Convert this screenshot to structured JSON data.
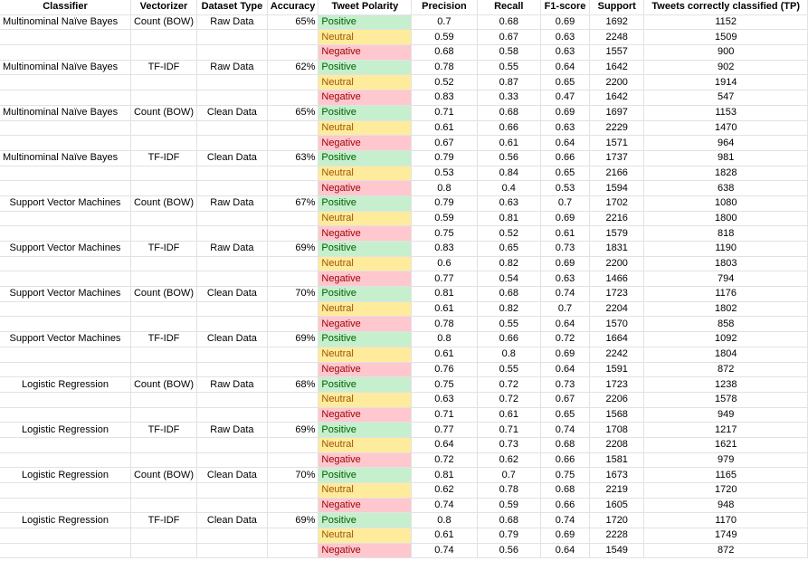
{
  "headers": [
    "Classifier",
    "Vectorizer",
    "Dataset Type",
    "Accuracy",
    "Tweet Polarity",
    "Precision",
    "Recall",
    "F1-score",
    "Support",
    "Tweets correctly classified (TP)"
  ],
  "colors": {
    "positive_bg": "#c6efce",
    "positive_text": "#006100",
    "neutral_bg": "#ffeb9c",
    "neutral_text": "#9c5700",
    "negative_bg": "#ffc7ce",
    "negative_text": "#9c0006"
  },
  "groups": [
    {
      "classifier": "Multinominal Naïve Bayes",
      "vectorizer": "Count (BOW)",
      "dataset": "Raw Data",
      "accuracy": "65%",
      "rows": [
        {
          "polarity": "Positive",
          "precision": "0.7",
          "recall": "0.68",
          "f1": "0.69",
          "support": "1692",
          "tp": "1152"
        },
        {
          "polarity": "Neutral",
          "precision": "0.59",
          "recall": "0.67",
          "f1": "0.63",
          "support": "2248",
          "tp": "1509"
        },
        {
          "polarity": "Negative",
          "precision": "0.68",
          "recall": "0.58",
          "f1": "0.63",
          "support": "1557",
          "tp": "900"
        }
      ]
    },
    {
      "classifier": "Multinominal Naïve Bayes",
      "vectorizer": "TF-IDF",
      "dataset": "Raw Data",
      "accuracy": "62%",
      "rows": [
        {
          "polarity": "Positive",
          "precision": "0.78",
          "recall": "0.55",
          "f1": "0.64",
          "support": "1642",
          "tp": "902"
        },
        {
          "polarity": "Neutral",
          "precision": "0.52",
          "recall": "0.87",
          "f1": "0.65",
          "support": "2200",
          "tp": "1914"
        },
        {
          "polarity": "Negative",
          "precision": "0.83",
          "recall": "0.33",
          "f1": "0.47",
          "support": "1642",
          "tp": "547"
        }
      ]
    },
    {
      "classifier": "Multinominal Naïve Bayes",
      "vectorizer": "Count (BOW)",
      "dataset": "Clean Data",
      "accuracy": "65%",
      "rows": [
        {
          "polarity": "Positive",
          "precision": "0.71",
          "recall": "0.68",
          "f1": "0.69",
          "support": "1697",
          "tp": "1153"
        },
        {
          "polarity": "Neutral",
          "precision": "0.61",
          "recall": "0.66",
          "f1": "0.63",
          "support": "2229",
          "tp": "1470"
        },
        {
          "polarity": "Negative",
          "precision": "0.67",
          "recall": "0.61",
          "f1": "0.64",
          "support": "1571",
          "tp": "964"
        }
      ]
    },
    {
      "classifier": "Multinominal Naïve Bayes",
      "vectorizer": "TF-IDF",
      "dataset": "Clean Data",
      "accuracy": "63%",
      "rows": [
        {
          "polarity": "Positive",
          "precision": "0.79",
          "recall": "0.56",
          "f1": "0.66",
          "support": "1737",
          "tp": "981"
        },
        {
          "polarity": "Neutral",
          "precision": "0.53",
          "recall": "0.84",
          "f1": "0.65",
          "support": "2166",
          "tp": "1828"
        },
        {
          "polarity": "Negative",
          "precision": "0.8",
          "recall": "0.4",
          "f1": "0.53",
          "support": "1594",
          "tp": "638"
        }
      ]
    },
    {
      "classifier": "Support Vector Machines",
      "vectorizer": "Count (BOW)",
      "dataset": "Raw Data",
      "accuracy": "67%",
      "separator": true,
      "rows": [
        {
          "polarity": "Positive",
          "precision": "0.79",
          "recall": "0.63",
          "f1": "0.7",
          "support": "1702",
          "tp": "1080"
        },
        {
          "polarity": "Neutral",
          "precision": "0.59",
          "recall": "0.81",
          "f1": "0.69",
          "support": "2216",
          "tp": "1800"
        },
        {
          "polarity": "Negative",
          "precision": "0.75",
          "recall": "0.52",
          "f1": "0.61",
          "support": "1579",
          "tp": "818"
        }
      ]
    },
    {
      "classifier": "Support Vector Machines",
      "vectorizer": "TF-IDF",
      "dataset": "Raw Data",
      "accuracy": "69%",
      "rows": [
        {
          "polarity": "Positive",
          "precision": "0.83",
          "recall": "0.65",
          "f1": "0.73",
          "support": "1831",
          "tp": "1190"
        },
        {
          "polarity": "Neutral",
          "precision": "0.6",
          "recall": "0.82",
          "f1": "0.69",
          "support": "2200",
          "tp": "1803"
        },
        {
          "polarity": "Negative",
          "precision": "0.77",
          "recall": "0.54",
          "f1": "0.63",
          "support": "1466",
          "tp": "794"
        }
      ]
    },
    {
      "classifier": "Support Vector Machines",
      "vectorizer": "Count (BOW)",
      "dataset": "Clean Data",
      "accuracy": "70%",
      "rows": [
        {
          "polarity": "Positive",
          "precision": "0.81",
          "recall": "0.68",
          "f1": "0.74",
          "support": "1723",
          "tp": "1176"
        },
        {
          "polarity": "Neutral",
          "precision": "0.61",
          "recall": "0.82",
          "f1": "0.7",
          "support": "2204",
          "tp": "1802"
        },
        {
          "polarity": "Negative",
          "precision": "0.78",
          "recall": "0.55",
          "f1": "0.64",
          "support": "1570",
          "tp": "858"
        }
      ]
    },
    {
      "classifier": "Support Vector Machines",
      "vectorizer": "TF-IDF",
      "dataset": "Clean Data",
      "accuracy": "69%",
      "rows": [
        {
          "polarity": "Positive",
          "precision": "0.8",
          "recall": "0.66",
          "f1": "0.72",
          "support": "1664",
          "tp": "1092"
        },
        {
          "polarity": "Neutral",
          "precision": "0.61",
          "recall": "0.8",
          "f1": "0.69",
          "support": "2242",
          "tp": "1804"
        },
        {
          "polarity": "Negative",
          "precision": "0.76",
          "recall": "0.55",
          "f1": "0.64",
          "support": "1591",
          "tp": "872"
        }
      ]
    },
    {
      "classifier": "Logistic Regression",
      "vectorizer": "Count (BOW)",
      "dataset": "Raw Data",
      "accuracy": "68%",
      "separator": true,
      "rows": [
        {
          "polarity": "Positive",
          "precision": "0.75",
          "recall": "0.72",
          "f1": "0.73",
          "support": "1723",
          "tp": "1238"
        },
        {
          "polarity": "Neutral",
          "precision": "0.63",
          "recall": "0.72",
          "f1": "0.67",
          "support": "2206",
          "tp": "1578"
        },
        {
          "polarity": "Negative",
          "precision": "0.71",
          "recall": "0.61",
          "f1": "0.65",
          "support": "1568",
          "tp": "949"
        }
      ]
    },
    {
      "classifier": "Logistic Regression",
      "vectorizer": "TF-IDF",
      "dataset": "Raw Data",
      "accuracy": "69%",
      "rows": [
        {
          "polarity": "Positive",
          "precision": "0.77",
          "recall": "0.71",
          "f1": "0.74",
          "support": "1708",
          "tp": "1217"
        },
        {
          "polarity": "Neutral",
          "precision": "0.64",
          "recall": "0.73",
          "f1": "0.68",
          "support": "2208",
          "tp": "1621"
        },
        {
          "polarity": "Negative",
          "precision": "0.72",
          "recall": "0.62",
          "f1": "0.66",
          "support": "1581",
          "tp": "979"
        }
      ]
    },
    {
      "classifier": "Logistic Regression",
      "vectorizer": "Count (BOW)",
      "dataset": "Clean Data",
      "accuracy": "70%",
      "rows": [
        {
          "polarity": "Positive",
          "precision": "0.81",
          "recall": "0.7",
          "f1": "0.75",
          "support": "1673",
          "tp": "1165"
        },
        {
          "polarity": "Neutral",
          "precision": "0.62",
          "recall": "0.78",
          "f1": "0.68",
          "support": "2219",
          "tp": "1720"
        },
        {
          "polarity": "Negative",
          "precision": "0.74",
          "recall": "0.59",
          "f1": "0.66",
          "support": "1605",
          "tp": "948"
        }
      ]
    },
    {
      "classifier": "Logistic Regression",
      "vectorizer": "TF-IDF",
      "dataset": "Clean Data",
      "accuracy": "69%",
      "rows": [
        {
          "polarity": "Positive",
          "precision": "0.8",
          "recall": "0.68",
          "f1": "0.74",
          "support": "1720",
          "tp": "1170"
        },
        {
          "polarity": "Neutral",
          "precision": "0.61",
          "recall": "0.79",
          "f1": "0.69",
          "support": "2228",
          "tp": "1749"
        },
        {
          "polarity": "Negative",
          "precision": "0.74",
          "recall": "0.56",
          "f1": "0.64",
          "support": "1549",
          "tp": "872"
        }
      ]
    }
  ]
}
